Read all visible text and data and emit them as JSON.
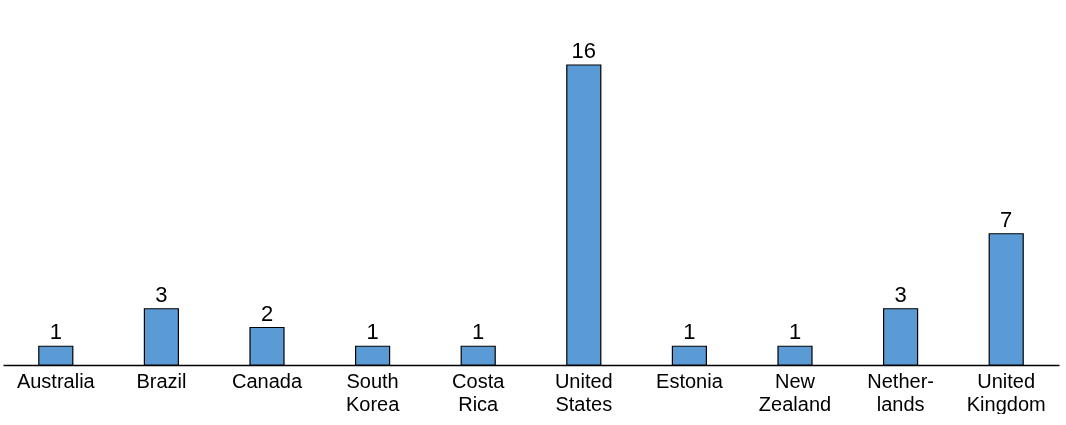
{
  "chart_data": {
    "type": "bar",
    "categories": [
      "Australia",
      "Brazil",
      "Canada",
      "South\nKorea",
      "Costa\nRica",
      "United\nStates",
      "Estonia",
      "New\nZealand",
      "Nether-\nlands",
      "United\nKingdom"
    ],
    "values": [
      1,
      3,
      2,
      1,
      1,
      16,
      1,
      1,
      3,
      7
    ],
    "color": "#5b9bd5",
    "data_labels": true
  }
}
